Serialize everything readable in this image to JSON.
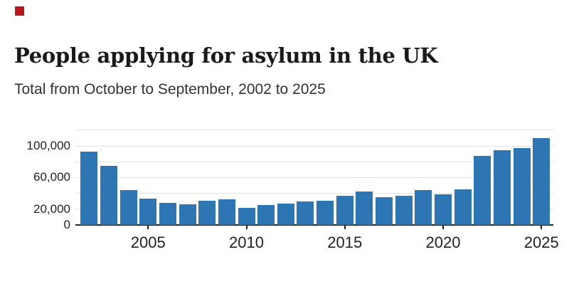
{
  "page": {
    "background": "#ffffff"
  },
  "brand": {
    "logo_color": "#bb1919",
    "logo_name": "red-square-logo"
  },
  "header": {
    "title": "People applying for asylum in the UK",
    "subtitle": "Total from October to September, 2002 to 2025"
  },
  "chart_data": {
    "type": "bar",
    "title": "People applying for asylum in the UK",
    "subtitle": "Total from October to September, 2002 to 2025",
    "categories": [
      2002,
      2003,
      2004,
      2005,
      2006,
      2007,
      2008,
      2009,
      2010,
      2011,
      2012,
      2013,
      2014,
      2015,
      2016,
      2017,
      2018,
      2019,
      2020,
      2021,
      2022,
      2023,
      2024,
      2025
    ],
    "values": [
      93000,
      75000,
      44000,
      33000,
      28000,
      26000,
      31000,
      32000,
      22000,
      25000,
      27000,
      30000,
      31000,
      37000,
      42000,
      35000,
      37000,
      44000,
      39000,
      45000,
      87000,
      95000,
      97000,
      110000
    ],
    "xlabel": "",
    "ylabel": "",
    "ylim": [
      0,
      120000
    ],
    "grid": "horizontal-only",
    "legend": "none",
    "y_tick_labels": [
      "100,000",
      "60,000",
      "20,000",
      "0"
    ],
    "y_tick_values": [
      100000,
      60000,
      20000,
      0
    ],
    "gridline_values": [
      20000,
      40000,
      60000,
      80000,
      100000,
      120000
    ],
    "x_tick_labels": [
      "2005",
      "2010",
      "2015",
      "2020",
      "2025"
    ],
    "x_tick_years": [
      2005,
      2010,
      2015,
      2020,
      2025
    ],
    "bar_color": "#2e76b3",
    "axis_color": "#222222",
    "gridline_color": "#e2e2e2",
    "label_color": "#222222"
  }
}
